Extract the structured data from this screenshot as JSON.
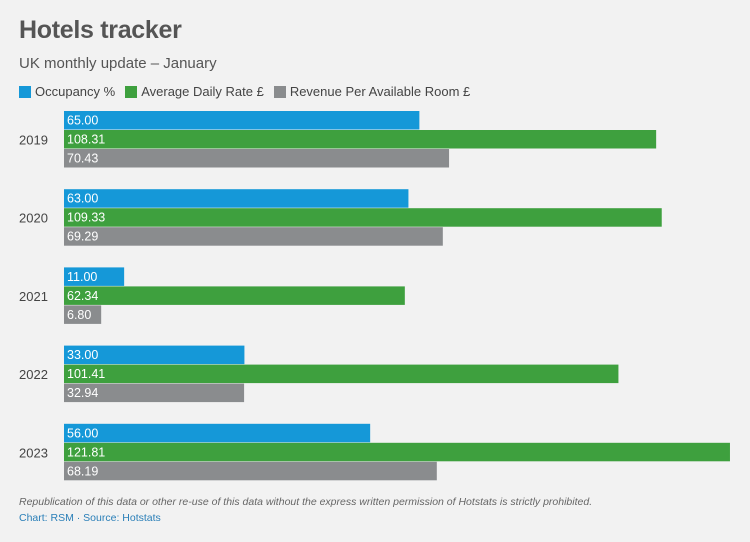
{
  "chart_data": {
    "type": "bar",
    "orientation": "horizontal",
    "title": "Hotels tracker",
    "subtitle": "UK monthly update – January",
    "categories": [
      "2019",
      "2020",
      "2021",
      "2022",
      "2023"
    ],
    "series": [
      {
        "name": "Occupancy %",
        "color": "#1598d8",
        "values": [
          65.0,
          63.0,
          11.0,
          33.0,
          56.0
        ],
        "labels": [
          "65.00",
          "63.00",
          "11.00",
          "33.00",
          "56.00"
        ]
      },
      {
        "name": "Average Daily Rate £",
        "color": "#3ea03e",
        "values": [
          108.31,
          109.33,
          62.34,
          101.41,
          121.81
        ],
        "labels": [
          "108.31",
          "109.33",
          "62.34",
          "101.41",
          "121.81"
        ]
      },
      {
        "name": "Revenue Per Available Room £",
        "color": "#8a8c8e",
        "values": [
          70.43,
          69.29,
          6.8,
          32.94,
          68.19
        ],
        "labels": [
          "70.43",
          "69.29",
          "6.80",
          "32.94",
          "68.19"
        ]
      }
    ],
    "xlim": [
      0,
      122
    ],
    "grid": false,
    "legend_position": "top-left",
    "footnote": "Republication of this data or other re-use of this data without the express written permission of Hotstats is strictly prohibited.",
    "source": "Chart: RSM · Source: Hotstats"
  }
}
